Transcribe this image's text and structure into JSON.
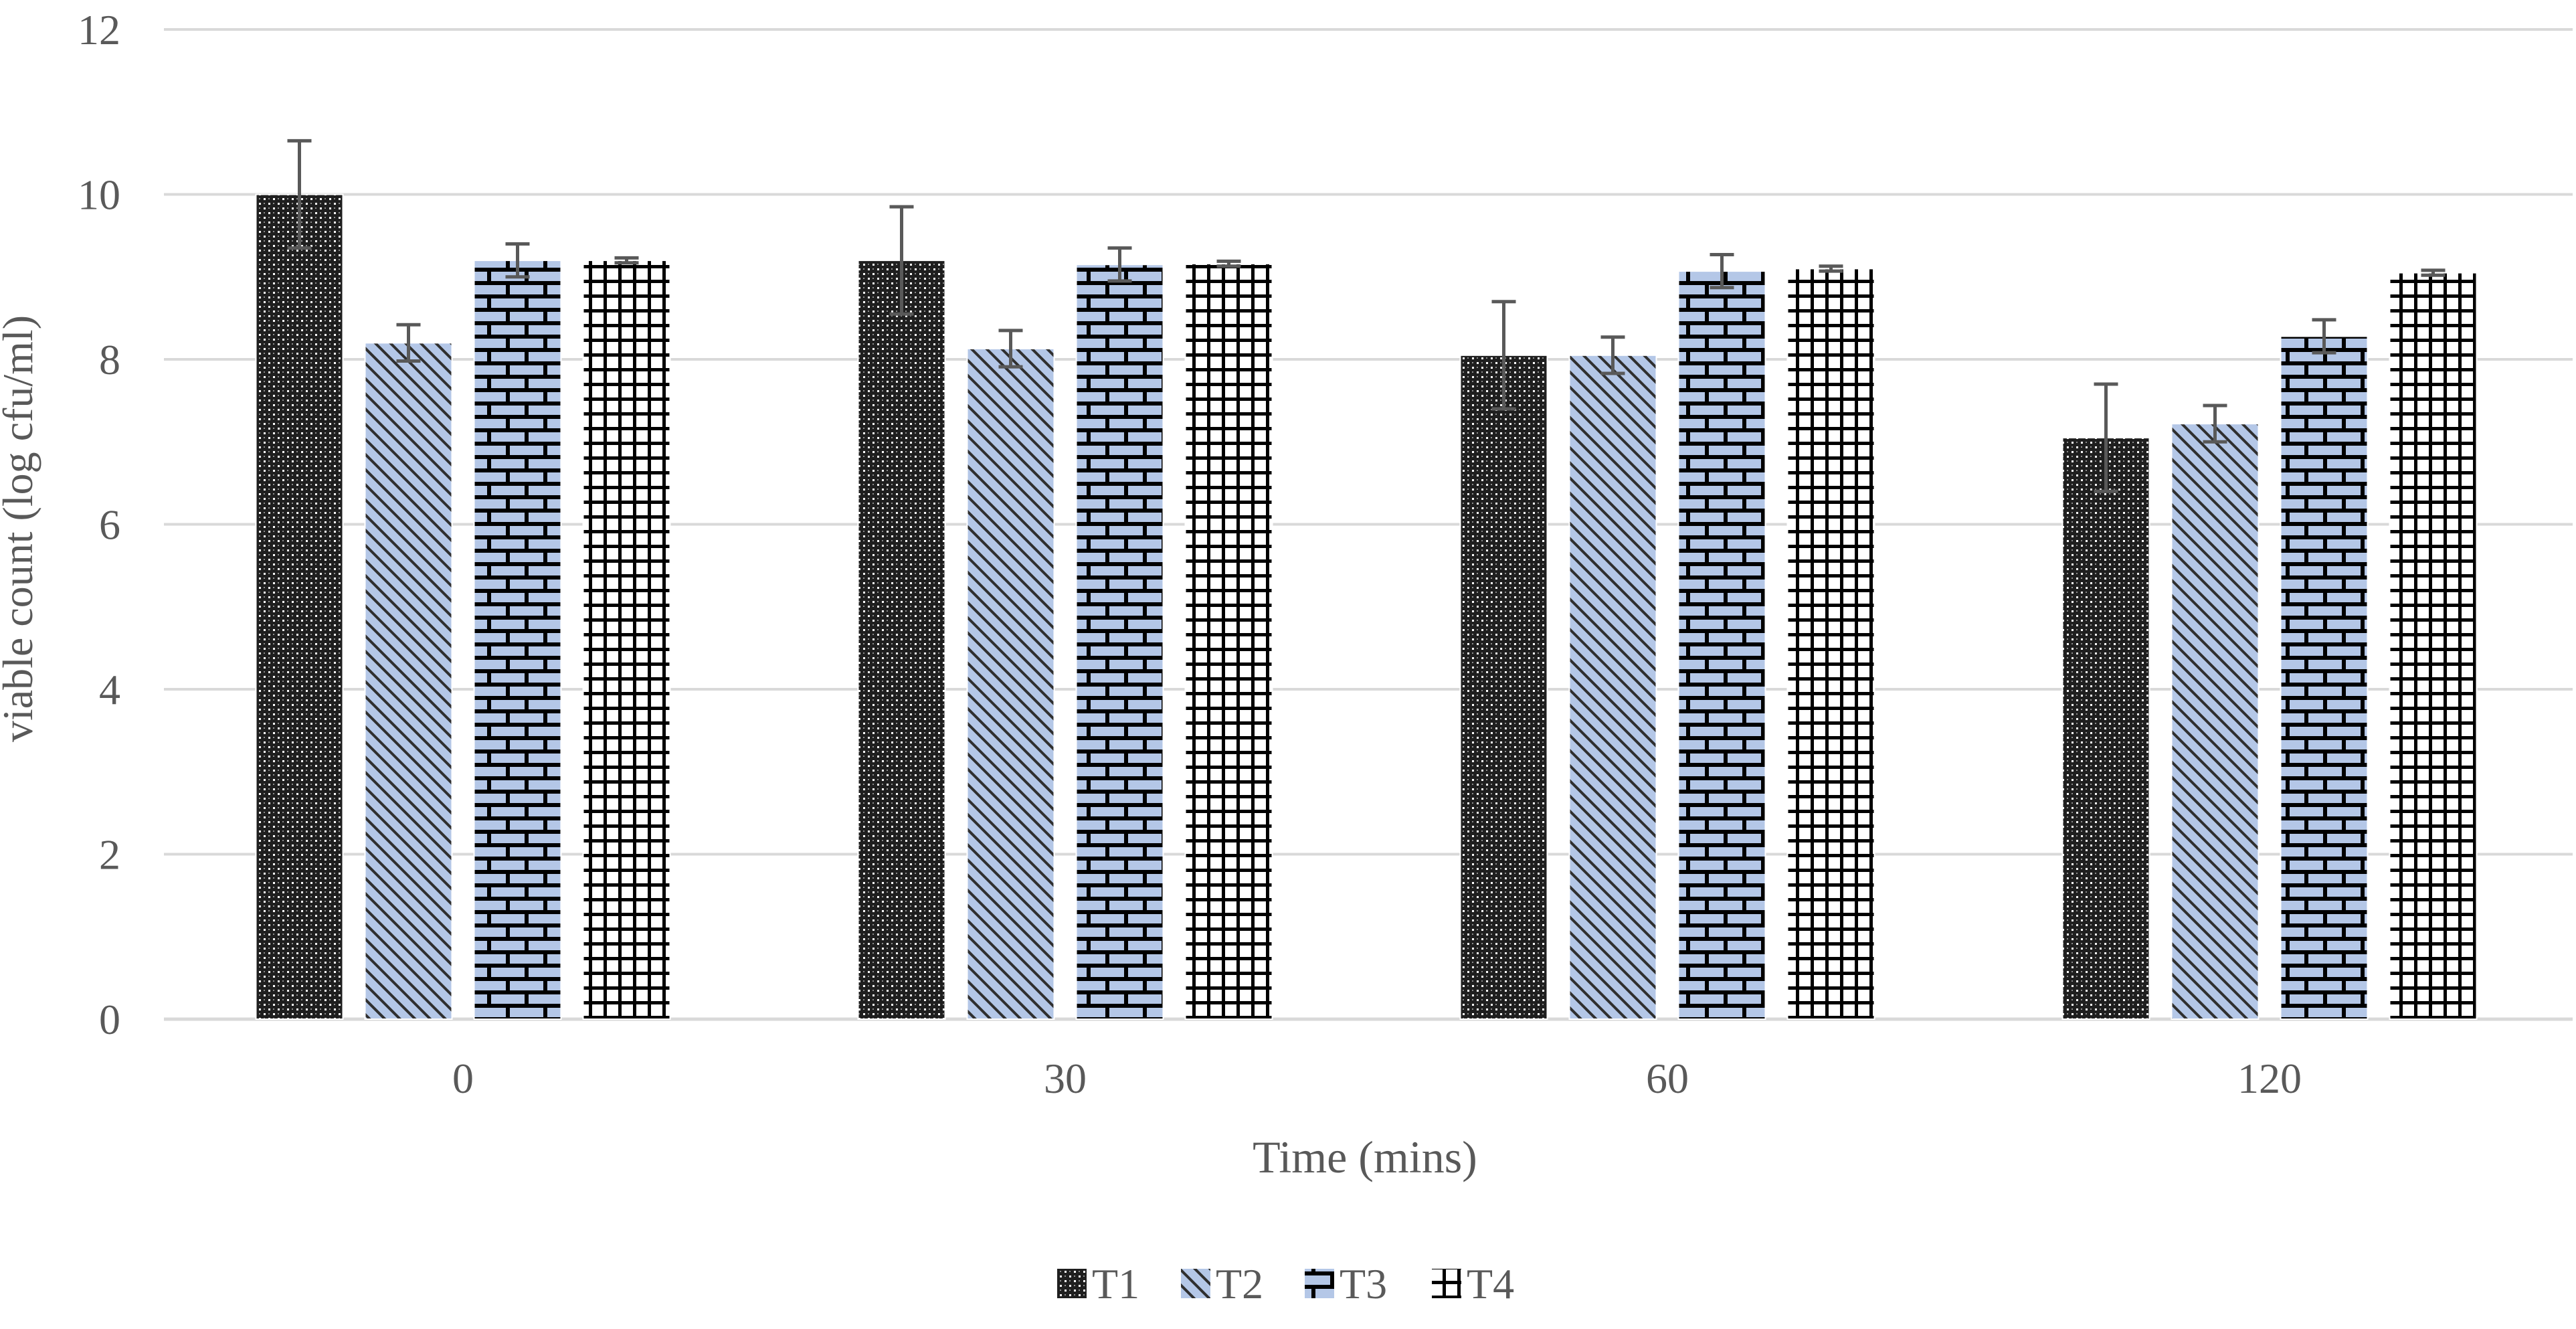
{
  "chart_data": {
    "type": "bar",
    "title": "",
    "xlabel": "Time (mins)",
    "ylabel": "viable count (log cfu/ml)",
    "categories": [
      "0",
      "30",
      "60",
      "120"
    ],
    "ylim": [
      0,
      12
    ],
    "yticks": [
      "0",
      "2",
      "4",
      "6",
      "8",
      "10",
      "12"
    ],
    "grid": true,
    "legend_position": "bottom",
    "error_bars": true,
    "series": [
      {
        "name": "T1",
        "pattern": "dotted-grid",
        "color": "#1a1a1a",
        "values": [
          10.0,
          9.2,
          8.05,
          7.05
        ],
        "errors": [
          0.65,
          0.65,
          0.65,
          0.65
        ]
      },
      {
        "name": "T2",
        "pattern": "diagonal-stripes",
        "color": "#b4c7e7",
        "values": [
          8.2,
          8.13,
          8.05,
          7.22
        ],
        "errors": [
          0.22,
          0.22,
          0.22,
          0.22
        ]
      },
      {
        "name": "T3",
        "pattern": "brick",
        "color": "#b4c7e7",
        "values": [
          9.2,
          9.15,
          9.07,
          8.28
        ],
        "errors": [
          0.2,
          0.2,
          0.2,
          0.2
        ]
      },
      {
        "name": "T4",
        "pattern": "grid",
        "color": "#000000",
        "values": [
          9.2,
          9.16,
          9.1,
          9.05
        ],
        "errors": [
          0.03,
          0.03,
          0.03,
          0.03
        ]
      }
    ]
  }
}
